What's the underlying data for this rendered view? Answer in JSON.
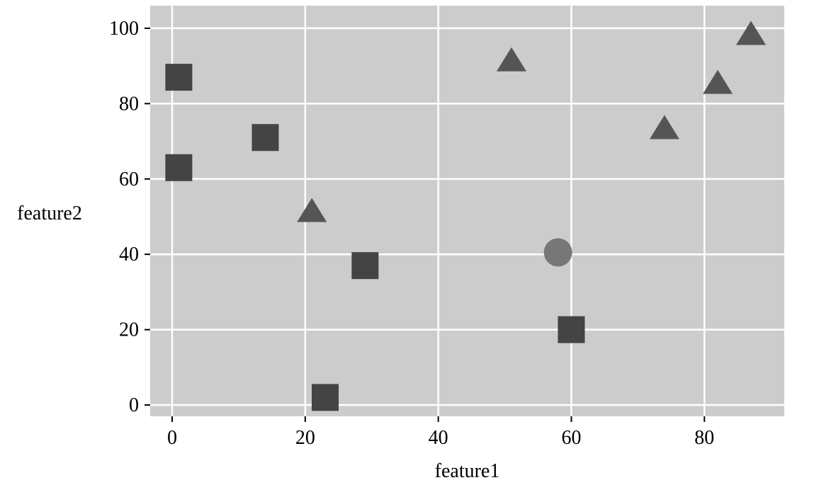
{
  "chart_data": {
    "type": "scatter",
    "title": "",
    "xlabel": "feature1",
    "ylabel": "feature2",
    "xlim": [
      -3.3,
      92
    ],
    "ylim": [
      -3,
      106
    ],
    "xticks": [
      0,
      20,
      40,
      60,
      80
    ],
    "yticks": [
      0,
      20,
      40,
      60,
      80,
      100
    ],
    "x_tick_labels": [
      "0",
      "20",
      "40",
      "60",
      "80"
    ],
    "y_tick_labels": [
      "0",
      "20",
      "40",
      "60",
      "80",
      "100"
    ],
    "grid": true,
    "legend": "none",
    "panel_color": "#cccccc",
    "grid_color": "#ffffff",
    "series": [
      {
        "marker": "square",
        "color": "#444444",
        "points": [
          {
            "x": 1,
            "y": 87
          },
          {
            "x": 1,
            "y": 63
          },
          {
            "x": 14,
            "y": 71
          },
          {
            "x": 29,
            "y": 37
          },
          {
            "x": 23,
            "y": 2
          },
          {
            "x": 60,
            "y": 20
          }
        ]
      },
      {
        "marker": "triangle",
        "color": "#555555",
        "points": [
          {
            "x": 21,
            "y": 51
          },
          {
            "x": 51,
            "y": 91
          },
          {
            "x": 74,
            "y": 73
          },
          {
            "x": 82,
            "y": 85
          },
          {
            "x": 87,
            "y": 98
          }
        ]
      },
      {
        "marker": "circle",
        "color": "#777777",
        "points": [
          {
            "x": 58,
            "y": 40.5
          }
        ]
      }
    ]
  }
}
